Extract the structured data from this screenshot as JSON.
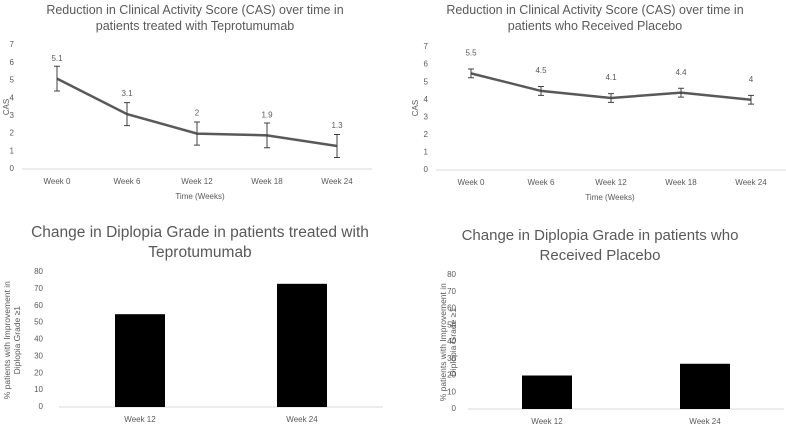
{
  "chart_data": [
    {
      "type": "line",
      "title": "Reduction in Clinical Activity Score (CAS) over time in patients treated with Teprotumumab",
      "x_label": "Time (Weeks)",
      "y_label": "CAS",
      "categories": [
        "Week 0",
        "Week 6",
        "Week 12",
        "Week 18",
        "Week 24"
      ],
      "values": [
        5.1,
        3.1,
        2,
        1.9,
        1.3
      ],
      "errors": [
        0.7,
        0.65,
        0.65,
        0.7,
        0.65
      ],
      "color": "#595959",
      "ylim": [
        0,
        7
      ],
      "yticks": [
        0,
        1,
        2,
        3,
        4,
        5,
        6,
        7
      ]
    },
    {
      "type": "line",
      "title": "Reduction in Clinical Activity Score (CAS) over time in patients who Received Placebo",
      "x_label": "Time (Weeks)",
      "y_label": "CAS",
      "categories": [
        "Week 0",
        "Week 6",
        "Week 12",
        "Week 18",
        "Week 24"
      ],
      "values": [
        5.5,
        4.5,
        4.1,
        4.4,
        4
      ],
      "errors": [
        0.25,
        0.25,
        0.25,
        0.25,
        0.25
      ],
      "color": "#595959",
      "ylim": [
        0,
        7
      ],
      "yticks": [
        0,
        1,
        2,
        3,
        4,
        5,
        6,
        7
      ]
    },
    {
      "type": "bar",
      "title": "Change in Diplopia Grade in patients treated with Teprotumumab",
      "y_label": "% patients with Improvement in Diplopia Grade ≥1",
      "categories": [
        "Week 12",
        "Week 24"
      ],
      "values": [
        55,
        73
      ],
      "color": "#000000",
      "ylim": [
        0,
        80
      ],
      "yticks": [
        0,
        10,
        20,
        30,
        40,
        50,
        60,
        70,
        80
      ]
    },
    {
      "type": "bar",
      "title": "Change in Diplopia Grade in patients who Received Placebo",
      "y_label": "% patients with Improvement in Diplopia Grade ≥1",
      "categories": [
        "Week 12",
        "Week 24"
      ],
      "values": [
        20,
        27
      ],
      "color": "#000000",
      "ylim": [
        0,
        80
      ],
      "yticks": [
        0,
        10,
        20,
        30,
        40,
        50,
        60,
        70,
        80
      ]
    }
  ]
}
